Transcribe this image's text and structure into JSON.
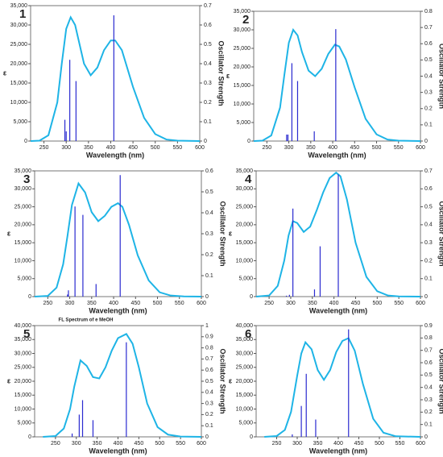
{
  "chart_data": [
    {
      "type": "line",
      "label": "1",
      "xlabel": "Wavelength (nm)",
      "ylabel": "ε",
      "y2label": "Oscillator Strength",
      "xlim": [
        220,
        600
      ],
      "xticks": [
        250,
        300,
        350,
        400,
        450,
        500,
        550,
        600
      ],
      "ylim": [
        0,
        35000
      ],
      "yticks": [
        0,
        {
          "value": 5000,
          "label": "5,000"
        },
        {
          "value": 10000,
          "label": "10,000"
        },
        {
          "value": 15000,
          "label": "15,000"
        },
        {
          "value": 20000,
          "label": "20,000"
        },
        {
          "value": 25000,
          "label": "25,000"
        },
        {
          "value": 30000,
          "label": "30,000"
        },
        {
          "value": 35000,
          "label": "35,000"
        }
      ],
      "y2lim": [
        0,
        0.7
      ],
      "y2ticks": [
        0,
        0.1,
        0.2,
        0.3,
        0.4,
        0.5,
        0.6,
        0.7
      ],
      "series": [
        {
          "type": "line",
          "color": "#1eb4e6",
          "x": [
            220,
            240,
            260,
            280,
            290,
            300,
            310,
            320,
            330,
            340,
            355,
            370,
            385,
            400,
            410,
            425,
            450,
            475,
            500,
            525,
            550,
            600
          ],
          "values": [
            0,
            100,
            1500,
            10000,
            20000,
            29000,
            32000,
            30000,
            25000,
            20000,
            17000,
            19000,
            23500,
            26000,
            26000,
            23500,
            14000,
            6000,
            1800,
            400,
            100,
            0
          ]
        },
        {
          "type": "stick",
          "axis": "y2",
          "color": "#2a2ad0",
          "x": [
            297,
            300,
            308,
            322,
            407
          ],
          "values": [
            0.11,
            0.05,
            0.42,
            0.31,
            0.65
          ]
        }
      ]
    },
    {
      "type": "line",
      "label": "2",
      "xlabel": "Wavelength (nm)",
      "ylabel": "ε",
      "y2label": "Oscillator Strength",
      "xlim": [
        220,
        600
      ],
      "xticks": [
        250,
        300,
        350,
        400,
        450,
        500,
        550,
        600
      ],
      "ylim": [
        0,
        35000
      ],
      "yticks": [
        0,
        {
          "value": 5000,
          "label": "5,000"
        },
        {
          "value": 10000,
          "label": "10,000"
        },
        {
          "value": 15000,
          "label": "15,000"
        },
        {
          "value": 20000,
          "label": "20,000"
        },
        {
          "value": 25000,
          "label": "25,000"
        },
        {
          "value": 30000,
          "label": "30,000"
        },
        {
          "value": 35000,
          "label": "35,000"
        }
      ],
      "y2lim": [
        0,
        0.8
      ],
      "y2ticks": [
        0,
        0.1,
        0.2,
        0.3,
        0.4,
        0.5,
        0.6,
        0.7,
        0.8
      ],
      "series": [
        {
          "type": "line",
          "color": "#1eb4e6",
          "x": [
            220,
            240,
            260,
            280,
            290,
            300,
            310,
            320,
            330,
            345,
            360,
            375,
            390,
            405,
            415,
            430,
            450,
            475,
            500,
            525,
            550,
            600
          ],
          "values": [
            0,
            100,
            1500,
            9000,
            18000,
            26500,
            30000,
            28500,
            24000,
            19000,
            17500,
            19500,
            23500,
            26000,
            25500,
            22000,
            14500,
            6000,
            1800,
            400,
            100,
            0
          ]
        },
        {
          "type": "stick",
          "axis": "y2",
          "color": "#2a2ad0",
          "x": [
            295,
            298,
            307,
            320,
            358,
            407
          ],
          "values": [
            0.04,
            0.04,
            0.48,
            0.37,
            0.06,
            0.69
          ]
        }
      ]
    },
    {
      "type": "line",
      "label": "3",
      "xlabel": "Wavelength (nm)",
      "ylabel": "ε",
      "y2label": "Oscillator Strength",
      "xlim": [
        220,
        600
      ],
      "xticks": [
        250,
        300,
        350,
        400,
        450,
        500,
        550,
        600
      ],
      "ylim": [
        0,
        35000
      ],
      "yticks": [
        0,
        {
          "value": 5000,
          "label": "5,000"
        },
        {
          "value": 10000,
          "label": "10,000"
        },
        {
          "value": 15000,
          "label": "15,000"
        },
        {
          "value": 20000,
          "label": "20,000"
        },
        {
          "value": 25000,
          "label": "25,000"
        },
        {
          "value": 30000,
          "label": "30,000"
        },
        {
          "value": 35000,
          "label": "35,000"
        }
      ],
      "y2lim": [
        0,
        0.6
      ],
      "y2ticks": [
        0,
        0.1,
        0.2,
        0.3,
        0.4,
        0.5,
        0.6
      ],
      "series": [
        {
          "type": "line",
          "color": "#1eb4e6",
          "x": [
            220,
            250,
            270,
            285,
            295,
            305,
            320,
            335,
            350,
            365,
            380,
            395,
            410,
            420,
            435,
            455,
            480,
            505,
            530,
            560,
            600
          ],
          "values": [
            0,
            200,
            2500,
            9000,
            17000,
            25500,
            31500,
            29000,
            23500,
            21000,
            22500,
            25000,
            26000,
            25000,
            20000,
            11500,
            4500,
            1200,
            300,
            50,
            0
          ]
        },
        {
          "type": "stick",
          "axis": "y2",
          "color": "#2a2ad0",
          "x": [
            295,
            297,
            312,
            330,
            360,
            415
          ],
          "values": [
            0.01,
            0.03,
            0.43,
            0.39,
            0.06,
            0.58
          ]
        }
      ]
    },
    {
      "type": "line",
      "label": "4",
      "xlabel": "Wavelength (nm)",
      "ylabel": "ε",
      "y2label": "Oscillator Strength",
      "xlim": [
        220,
        600
      ],
      "xticks": [
        250,
        300,
        350,
        400,
        450,
        500,
        550,
        600
      ],
      "ylim": [
        0,
        35000
      ],
      "yticks": [
        0,
        {
          "value": 5000,
          "label": "5,000"
        },
        {
          "value": 10000,
          "label": "10,000"
        },
        {
          "value": 15000,
          "label": "15,000"
        },
        {
          "value": 20000,
          "label": "20,000"
        },
        {
          "value": 25000,
          "label": "25,000"
        },
        {
          "value": 30000,
          "label": "30,000"
        },
        {
          "value": 35000,
          "label": "35,000"
        }
      ],
      "y2lim": [
        0,
        0.7
      ],
      "y2ticks": [
        0,
        0.1,
        0.2,
        0.3,
        0.4,
        0.5,
        0.6,
        0.7
      ],
      "series": [
        {
          "type": "line",
          "color": "#1eb4e6",
          "x": [
            220,
            250,
            270,
            285,
            295,
            305,
            315,
            330,
            345,
            360,
            375,
            390,
            405,
            415,
            430,
            450,
            475,
            500,
            525,
            550,
            600
          ],
          "values": [
            0,
            300,
            3000,
            10000,
            17000,
            21000,
            20500,
            18000,
            19500,
            24000,
            29000,
            33000,
            34500,
            33500,
            27000,
            15000,
            5500,
            1500,
            300,
            50,
            0
          ]
        },
        {
          "type": "stick",
          "axis": "y2",
          "color": "#2a2ad0",
          "x": [
            290,
            297,
            305,
            355,
            368,
            410
          ],
          "values": [
            0.005,
            0.01,
            0.49,
            0.04,
            0.28,
            0.68
          ]
        }
      ]
    },
    {
      "type": "line",
      "label": "5",
      "annotation": "FL Spectrum of e MeOH",
      "xlabel": "Wavelength (nm)",
      "ylabel": "ε",
      "y2label": "Oscillator Strength",
      "xlim": [
        200,
        600
      ],
      "xticks": [
        250,
        300,
        350,
        400,
        450,
        500,
        550,
        600
      ],
      "ylim": [
        0,
        40000
      ],
      "yticks": [
        0,
        {
          "value": 5000,
          "label": "5,000"
        },
        {
          "value": 10000,
          "label": "10,000"
        },
        {
          "value": 15000,
          "label": "15,000"
        },
        {
          "value": 20000,
          "label": "20,000"
        },
        {
          "value": 25000,
          "label": "25,000"
        },
        {
          "value": 30000,
          "label": "30,000"
        },
        {
          "value": 35000,
          "label": "35,000"
        },
        {
          "value": 40000,
          "label": "40,000"
        }
      ],
      "y2lim": [
        0,
        1
      ],
      "y2ticks": [
        0,
        0.1,
        0.2,
        0.3,
        0.4,
        0.5,
        0.6,
        0.7,
        0.8,
        0.9,
        1
      ],
      "series": [
        {
          "type": "line",
          "color": "#1eb4e6",
          "x": [
            220,
            250,
            270,
            285,
            295,
            310,
            325,
            340,
            355,
            370,
            385,
            400,
            420,
            435,
            450,
            470,
            495,
            520,
            550,
            600
          ],
          "values": [
            0,
            300,
            3000,
            10000,
            18000,
            27500,
            25500,
            21500,
            21000,
            25000,
            31000,
            35500,
            37000,
            33500,
            25000,
            12000,
            3500,
            800,
            100,
            0
          ]
        },
        {
          "type": "stick",
          "axis": "y2",
          "color": "#2a2ad0",
          "x": [
            290,
            307,
            315,
            340,
            420
          ],
          "values": [
            0.03,
            0.2,
            0.33,
            0.15,
            0.85
          ]
        }
      ]
    },
    {
      "type": "line",
      "label": "6",
      "xlabel": "Wavelength (nm)",
      "ylabel": "ε",
      "y2label": "Oscillator Strength",
      "xlim": [
        200,
        600
      ],
      "xticks": [
        250,
        300,
        350,
        400,
        450,
        500,
        550,
        600
      ],
      "ylim": [
        0,
        40000
      ],
      "yticks": [
        0,
        {
          "value": 5000,
          "label": "5,000"
        },
        {
          "value": 10000,
          "label": "10,000"
        },
        {
          "value": 15000,
          "label": "15,000"
        },
        {
          "value": 20000,
          "label": "20,000"
        },
        {
          "value": 25000,
          "label": "25,000"
        },
        {
          "value": 30000,
          "label": "30,000"
        },
        {
          "value": 35000,
          "label": "35,000"
        },
        {
          "value": 40000,
          "label": "40,000"
        }
      ],
      "y2lim": [
        0,
        0.9
      ],
      "y2ticks": [
        0,
        0.1,
        0.2,
        0.3,
        0.4,
        0.5,
        0.6,
        0.7,
        0.8,
        0.9
      ],
      "series": [
        {
          "type": "line",
          "color": "#1eb4e6",
          "x": [
            220,
            250,
            270,
            285,
            300,
            310,
            320,
            335,
            350,
            365,
            380,
            395,
            410,
            425,
            440,
            460,
            485,
            510,
            540,
            600
          ],
          "values": [
            0,
            300,
            2500,
            9000,
            22000,
            30000,
            34000,
            31500,
            24000,
            20500,
            24000,
            30500,
            34500,
            35500,
            31000,
            19000,
            6500,
            1500,
            200,
            0
          ]
        },
        {
          "type": "stick",
          "axis": "y2",
          "color": "#2a2ad0",
          "x": [
            288,
            310,
            322,
            345,
            425
          ],
          "values": [
            0.02,
            0.25,
            0.51,
            0.14,
            0.87
          ]
        }
      ]
    }
  ]
}
